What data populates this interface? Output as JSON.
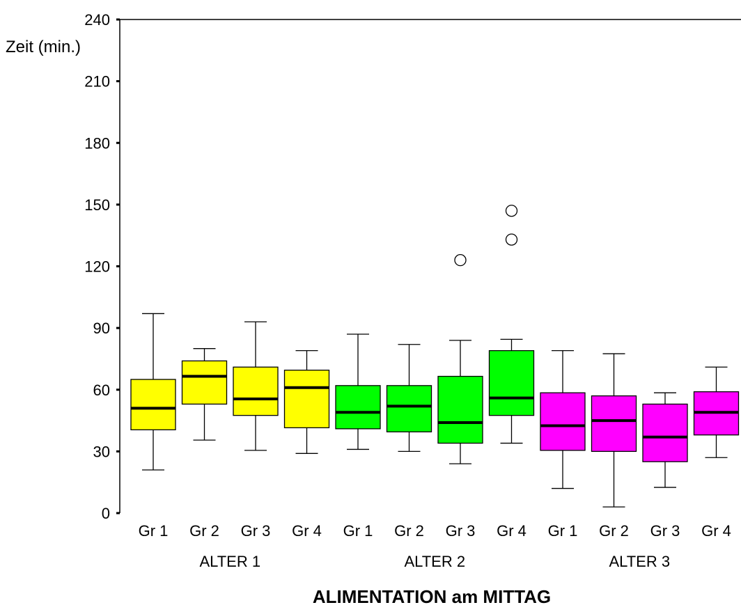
{
  "chart_data": {
    "type": "boxplot",
    "ylabel": "Zeit (min.)",
    "xlabel": "ALIMENTATION am MITTAG",
    "ylim": [
      0,
      240
    ],
    "yticks": [
      0,
      30,
      60,
      90,
      120,
      150,
      180,
      210,
      240
    ],
    "groups": [
      {
        "label": "ALTER 1",
        "color": "#ffff00"
      },
      {
        "label": "ALTER 2",
        "color": "#00ff00"
      },
      {
        "label": "ALTER 3",
        "color": "#ff00ff"
      }
    ],
    "boxes": [
      {
        "category": "Gr 1",
        "group": 0,
        "min": 21,
        "q1": 40.5,
        "median": 51,
        "q3": 65,
        "max": 97,
        "outliers": []
      },
      {
        "category": "Gr 2",
        "group": 0,
        "min": 35.5,
        "q1": 53,
        "median": 66.5,
        "q3": 74,
        "max": 80,
        "outliers": []
      },
      {
        "category": "Gr 3",
        "group": 0,
        "min": 30.5,
        "q1": 47.5,
        "median": 55.5,
        "q3": 71,
        "max": 93,
        "outliers": []
      },
      {
        "category": "Gr 4",
        "group": 0,
        "min": 29,
        "q1": 41.5,
        "median": 61,
        "q3": 69.5,
        "max": 79,
        "outliers": []
      },
      {
        "category": "Gr 1",
        "group": 1,
        "min": 31,
        "q1": 41,
        "median": 49,
        "q3": 62,
        "max": 87,
        "outliers": []
      },
      {
        "category": "Gr 2",
        "group": 1,
        "min": 30,
        "q1": 39.5,
        "median": 52,
        "q3": 62,
        "max": 82,
        "outliers": []
      },
      {
        "category": "Gr 3",
        "group": 1,
        "min": 24,
        "q1": 34,
        "median": 44,
        "q3": 66.5,
        "max": 84,
        "outliers": [
          123
        ]
      },
      {
        "category": "Gr 4",
        "group": 1,
        "min": 34,
        "q1": 47.5,
        "median": 56,
        "q3": 79,
        "max": 84.5,
        "outliers": [
          133,
          147
        ]
      },
      {
        "category": "Gr 1",
        "group": 2,
        "min": 12,
        "q1": 30.5,
        "median": 42.5,
        "q3": 58.5,
        "max": 79,
        "outliers": []
      },
      {
        "category": "Gr 2",
        "group": 2,
        "min": 3,
        "q1": 30,
        "median": 45,
        "q3": 57,
        "max": 77.5,
        "outliers": []
      },
      {
        "category": "Gr 3",
        "group": 2,
        "min": 12.5,
        "q1": 25,
        "median": 37,
        "q3": 53,
        "max": 58.5,
        "outliers": []
      },
      {
        "category": "Gr 4",
        "group": 2,
        "min": 27,
        "q1": 38,
        "median": 49,
        "q3": 59,
        "max": 71,
        "outliers": []
      }
    ]
  }
}
